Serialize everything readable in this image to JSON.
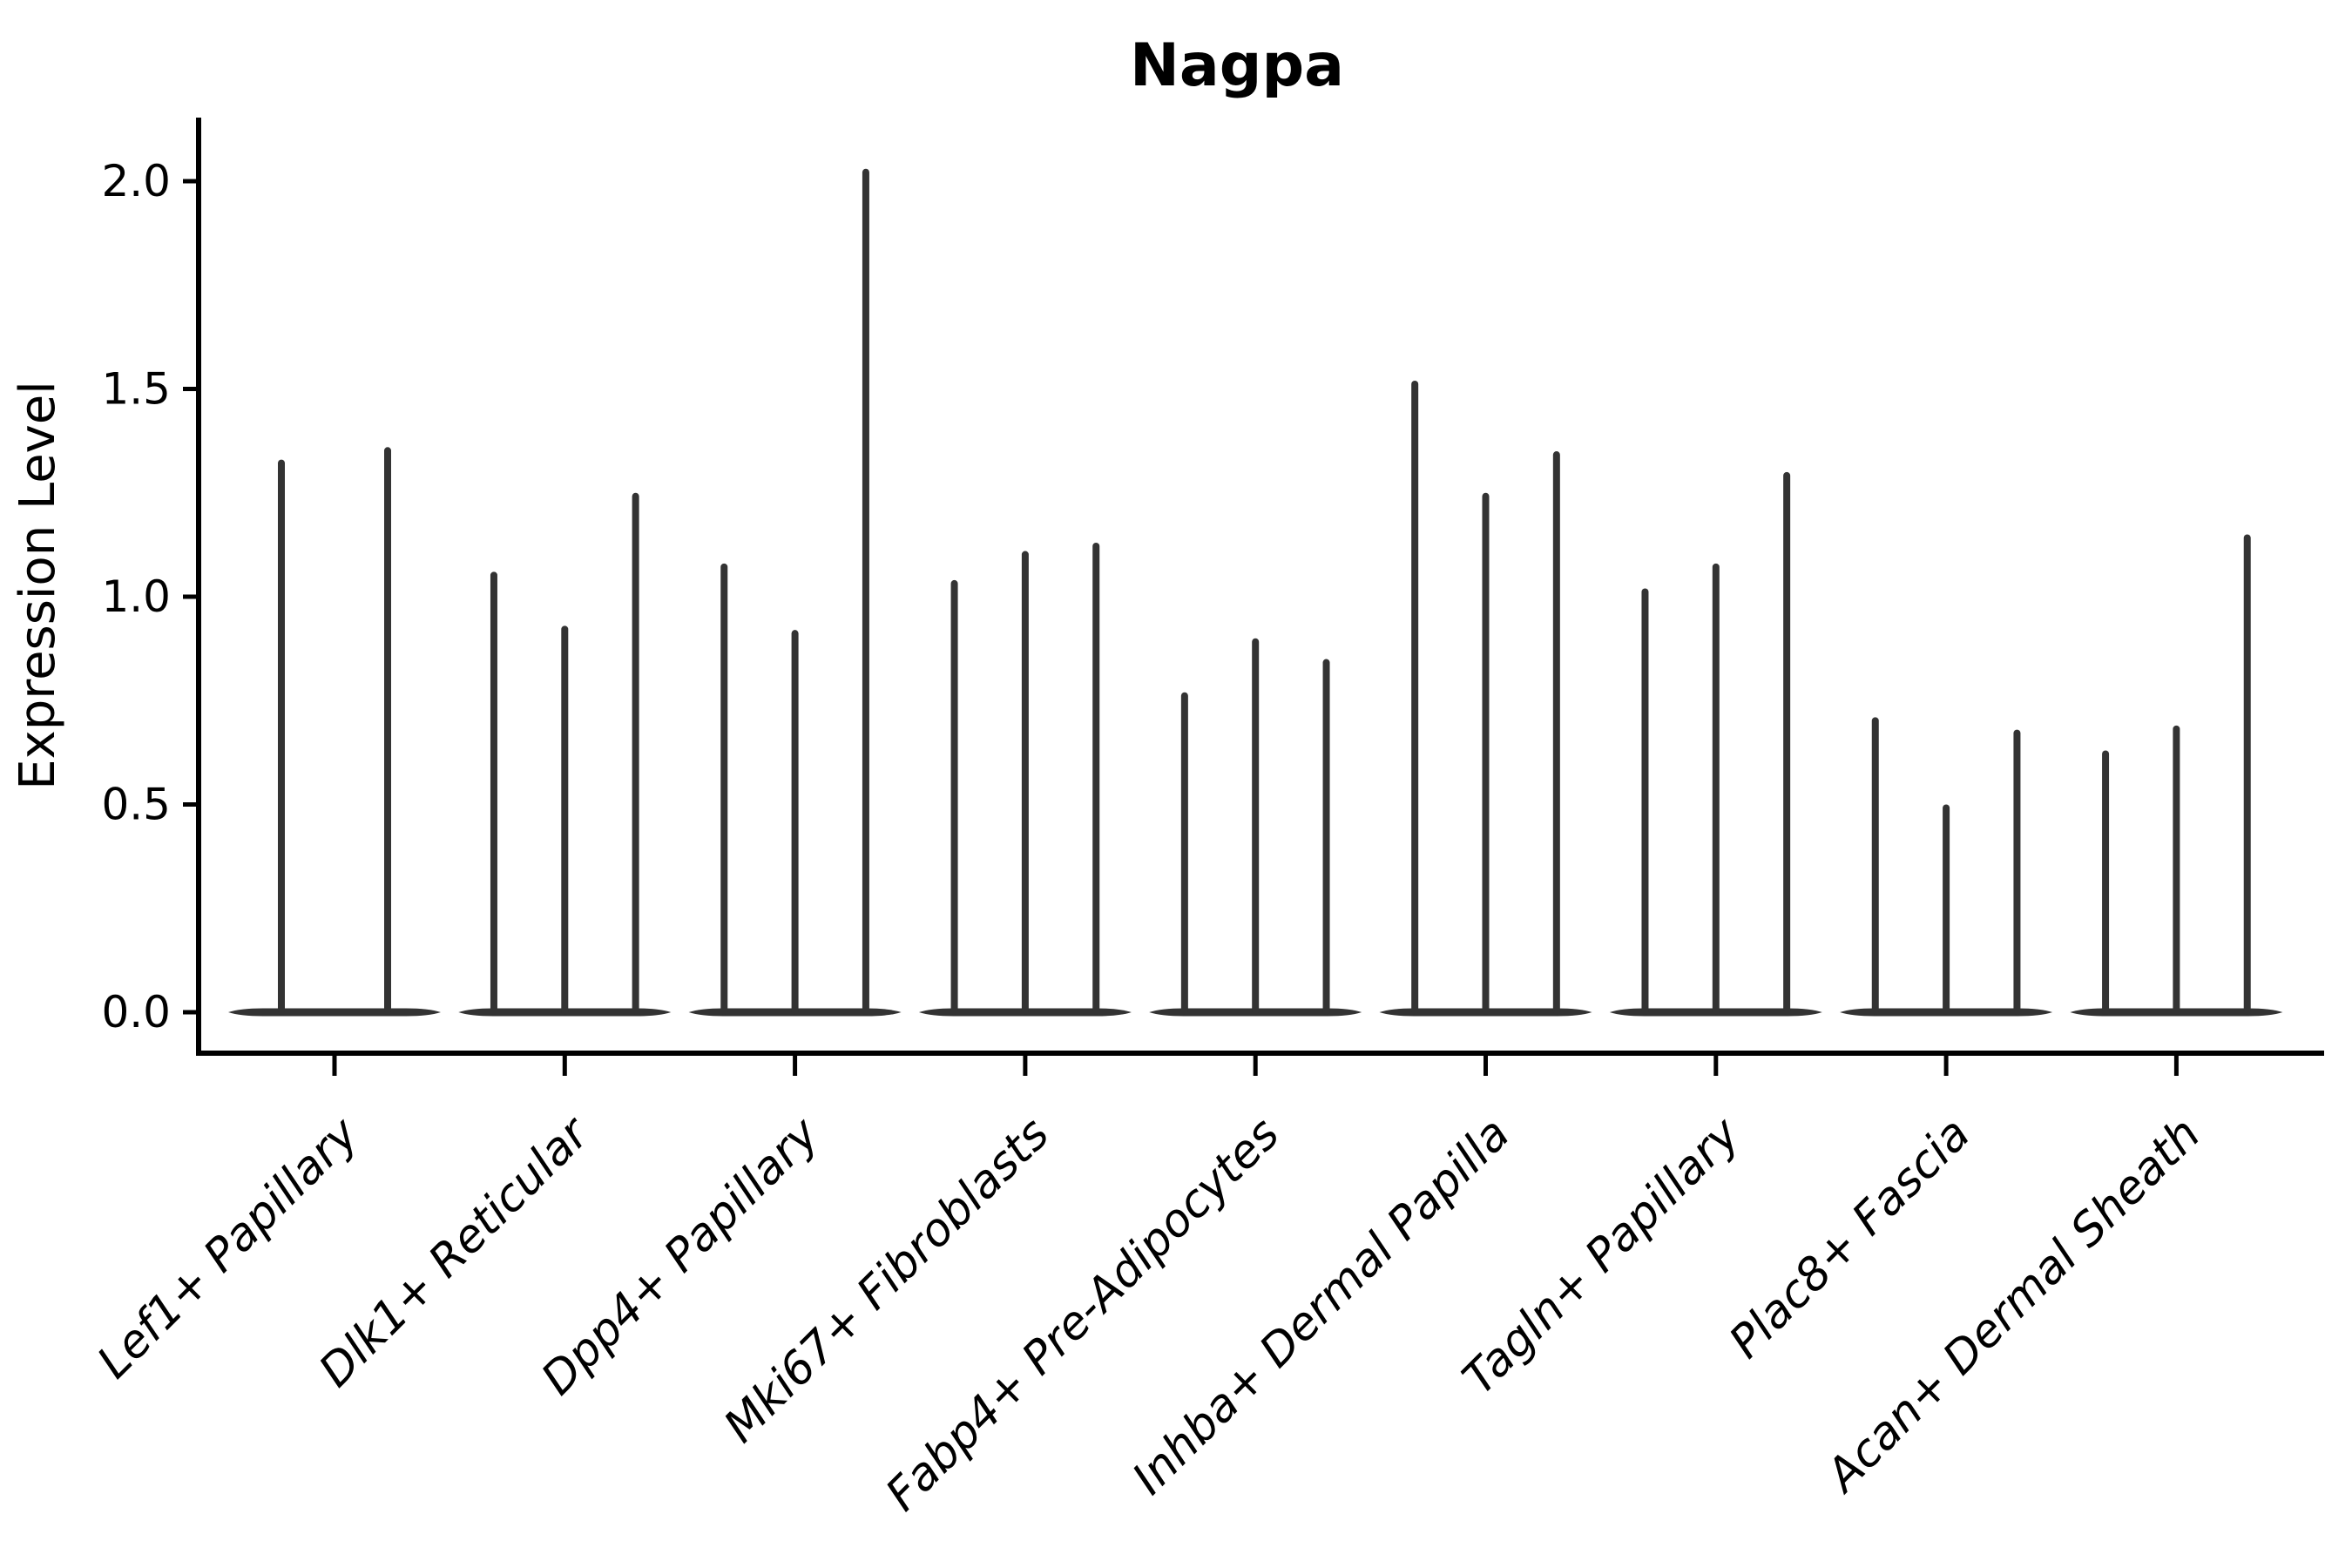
{
  "chart_data": {
    "type": "violin",
    "title": "Nagpa",
    "xlabel": "",
    "ylabel": "Expression Level",
    "ylim": [
      0,
      2.1
    ],
    "ytick_labels": [
      "0.0",
      "0.5",
      "1.0",
      "1.5",
      "2.0"
    ],
    "ytick_values": [
      0,
      0.5,
      1.0,
      1.5,
      2.0
    ],
    "grid": false,
    "legend_position": "none",
    "violin_color": "#333333",
    "axis_color": "#000000",
    "categories": [
      "Lef1+ Papillary",
      "Dlk1+ Reticular",
      "Dpp4+ Papillary",
      "Mki67+ Fibroblasts",
      "Fabp4+ Pre-Adipocytes",
      "Inhba+ Dermal Papilla",
      "Tagln+ Papillary",
      "Plac8+ Fascia",
      "Acan+ Dermal Sheath"
    ],
    "groups": [
      {
        "label": "Lef1+ Papillary",
        "violin_peaks": [
          1.33,
          1.36
        ]
      },
      {
        "label": "Dlk1+ Reticular",
        "violin_peaks": [
          1.06,
          0.93,
          1.25
        ]
      },
      {
        "label": "Dpp4+ Papillary",
        "violin_peaks": [
          1.08,
          0.92,
          2.03
        ]
      },
      {
        "label": "Mki67+ Fibroblasts",
        "violin_peaks": [
          1.04,
          1.11,
          1.13
        ]
      },
      {
        "label": "Fabp4+ Pre-Adipocytes",
        "violin_peaks": [
          0.77,
          0.9,
          0.85
        ]
      },
      {
        "label": "Inhba+ Dermal Papilla",
        "violin_peaks": [
          1.52,
          1.25,
          1.35
        ]
      },
      {
        "label": "Tagln+ Papillary",
        "violin_peaks": [
          1.02,
          1.08,
          1.3
        ]
      },
      {
        "label": "Plac8+ Fascia",
        "violin_peaks": [
          0.71,
          0.5,
          0.68
        ]
      },
      {
        "label": "Acan+ Dermal Sheath",
        "violin_peaks": [
          0.63,
          0.69,
          1.15
        ]
      }
    ]
  }
}
